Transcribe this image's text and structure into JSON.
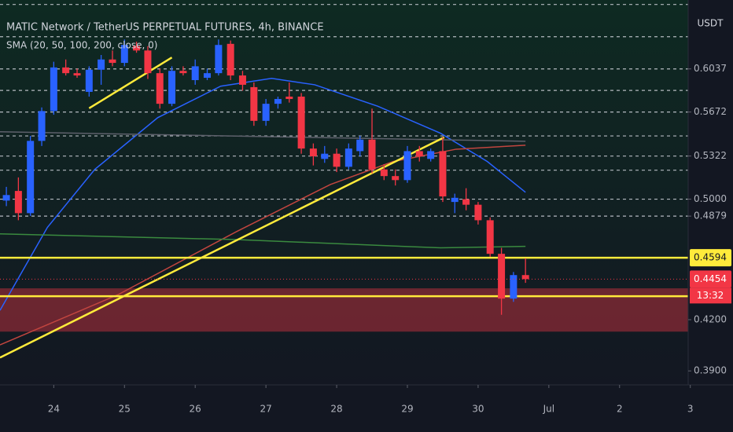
{
  "chart_data": {
    "type": "candlestick",
    "title": "MATIC Network / TetherUS PERPETUAL FUTURES, 4h, BINANCE",
    "indicator_label": "SMA (20, 50, 100, 200, close, 0)",
    "currency": "USDT",
    "countdown": "13:32",
    "log_scale": true,
    "xlim": [
      23.24,
      32.97
    ],
    "ylim": [
      0.3822,
      0.667
    ],
    "xticks": [
      24,
      25,
      26,
      27,
      28,
      29,
      30,
      {
        "value": 31,
        "label": "Jul"
      },
      {
        "value": 32,
        "label": "2"
      },
      {
        "value": 33,
        "label": "3"
      }
    ],
    "yticks": [
      0.6037,
      0.5672,
      0.5322,
      {
        "value": 0.5,
        "label": "0.5000"
      },
      0.4879,
      {
        "value": 0.42,
        "label": "0.4200"
      },
      {
        "value": 0.39,
        "label": "0.3900"
      }
    ],
    "price_labels": [
      {
        "value": 0.4594,
        "color": "#ffeb3b"
      },
      {
        "value": 0.4454,
        "color": "#f23645"
      }
    ],
    "up_color": "#2962ff",
    "down_color": "#f23645",
    "x": [
      23.33,
      23.5,
      23.67,
      23.83,
      24,
      24.17,
      24.33,
      24.5,
      24.67,
      24.83,
      25,
      25.17,
      25.33,
      25.5,
      25.67,
      25.83,
      26,
      26.17,
      26.33,
      26.5,
      26.67,
      26.83,
      27,
      27.17,
      27.33,
      27.5,
      27.67,
      27.83,
      28,
      28.17,
      28.33,
      28.5,
      28.67,
      28.83,
      29,
      29.17,
      29.33,
      29.5,
      29.67,
      29.83,
      30,
      30.17,
      30.33,
      30.5,
      30.67
    ],
    "open": [
      0.499,
      0.506,
      0.49,
      0.544,
      0.568,
      0.605,
      0.6,
      0.584,
      0.603,
      0.612,
      0.609,
      0.624,
      0.62,
      0.6,
      0.574,
      0.602,
      0.594,
      0.596,
      0.6,
      0.626,
      0.598,
      0.588,
      0.56,
      0.574,
      0.58,
      0.58,
      0.538,
      0.53,
      0.534,
      0.524,
      0.536,
      0.545,
      0.522,
      0.517,
      0.514,
      0.536,
      0.53,
      0.536,
      0.498,
      0.5,
      0.496,
      0.485,
      0.462,
      0.433,
      0.448
    ],
    "high": [
      0.509,
      0.516,
      0.548,
      0.571,
      0.61,
      0.612,
      0.604,
      0.606,
      0.616,
      0.62,
      0.63,
      0.628,
      0.624,
      0.604,
      0.606,
      0.606,
      0.612,
      0.604,
      0.63,
      0.629,
      0.602,
      0.592,
      0.578,
      0.58,
      0.592,
      0.583,
      0.542,
      0.54,
      0.538,
      0.542,
      0.548,
      0.57,
      0.526,
      0.522,
      0.54,
      0.54,
      0.538,
      0.547,
      0.504,
      0.508,
      0.498,
      0.487,
      0.466,
      0.45,
      0.459
    ],
    "low": [
      0.495,
      0.485,
      0.488,
      0.54,
      0.565,
      0.598,
      0.596,
      0.58,
      0.59,
      0.606,
      0.606,
      0.618,
      0.595,
      0.57,
      0.572,
      0.598,
      0.59,
      0.594,
      0.598,
      0.594,
      0.585,
      0.556,
      0.556,
      0.57,
      0.575,
      0.534,
      0.525,
      0.527,
      0.52,
      0.522,
      0.532,
      0.519,
      0.514,
      0.51,
      0.512,
      0.528,
      0.528,
      0.498,
      0.49,
      0.492,
      0.482,
      0.46,
      0.423,
      0.431,
      0.443
    ],
    "close": [
      0.503,
      0.49,
      0.544,
      0.568,
      0.605,
      0.6,
      0.598,
      0.603,
      0.612,
      0.609,
      0.625,
      0.62,
      0.6,
      0.574,
      0.602,
      0.6,
      0.606,
      0.6,
      0.625,
      0.598,
      0.59,
      0.56,
      0.574,
      0.578,
      0.578,
      0.538,
      0.532,
      0.534,
      0.524,
      0.538,
      0.545,
      0.522,
      0.517,
      0.514,
      0.536,
      0.532,
      0.536,
      0.502,
      0.501,
      0.496,
      0.485,
      0.462,
      0.433,
      0.448,
      0.4454
    ],
    "levels": [
      0.6627,
      0.6325,
      0.6037,
      0.5852,
      0.5672,
      0.5479,
      0.5322,
      0.5214,
      0.5,
      0.4879
    ],
    "horizontal_lines": [
      {
        "value": 0.4594,
        "color": "#ffeb3b"
      },
      {
        "value": 0.4345,
        "color": "#ffeb3b"
      }
    ],
    "zone": {
      "range": [
        0.4128,
        0.4395
      ],
      "color": "#f2364566"
    },
    "trend_lines": [
      {
        "color": "#ffeb3b",
        "x": [
          23.24,
          29.52
        ],
        "values": [
          0.3976,
          0.5468
        ]
      },
      {
        "color": "#ffeb3b",
        "x": [
          24.5,
          25.67
        ],
        "values": [
          0.5703,
          0.6138
        ]
      }
    ],
    "indicators": [
      {
        "color": "#2962ff",
        "x": [
          23.24,
          23.91,
          24.58,
          25.47,
          26.36,
          27.08,
          27.69,
          28.58,
          29.47,
          30.13,
          30.67
        ],
        "values": [
          0.4257,
          0.48,
          0.522,
          0.5626,
          0.5888,
          0.5955,
          0.59,
          0.572,
          0.55,
          0.528,
          0.505
        ]
      },
      {
        "color": "#c2453f",
        "x": [
          23.24,
          24.91,
          26.58,
          27.91,
          28.8,
          29.69,
          30.67
        ],
        "values": [
          0.405,
          0.4355,
          0.477,
          0.5107,
          0.528,
          0.5375,
          0.5406
        ]
      },
      {
        "color": "#3a8a3f",
        "x": [
          23.24,
          26.58,
          29.47,
          30.67
        ],
        "values": [
          0.4755,
          0.4716,
          0.466,
          0.467
        ]
      },
      {
        "color": "#5d606b",
        "x": [
          23.24,
          30.67
        ],
        "values": [
          0.5512,
          0.5437
        ]
      }
    ]
  }
}
